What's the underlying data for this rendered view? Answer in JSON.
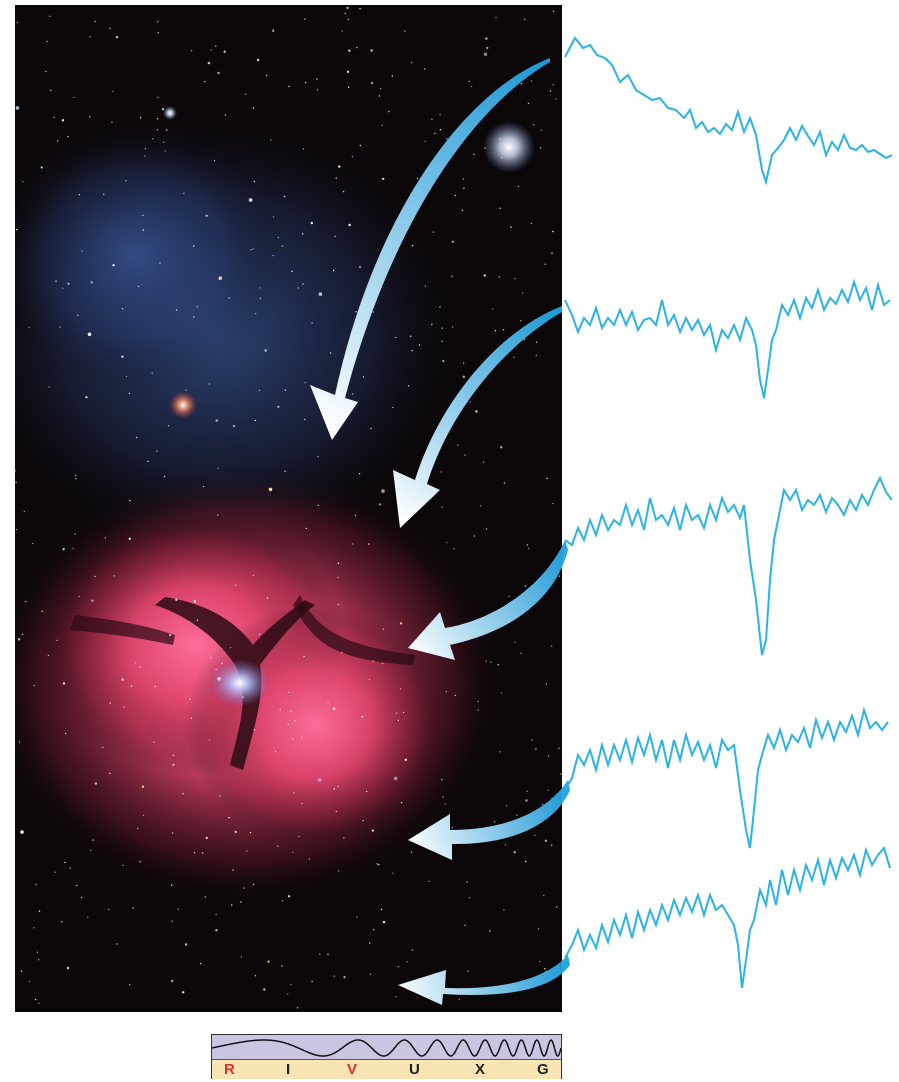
{
  "figure": {
    "photo_subject": "nebula-star-field",
    "spectrum_color": "#2bb3e6",
    "arrow_color": "#29a8e0",
    "spectra_count": 5
  },
  "wave_bar": {
    "bands": [
      {
        "label": "R",
        "highlight": true
      },
      {
        "label": "I",
        "highlight": false
      },
      {
        "label": "V",
        "highlight": true
      },
      {
        "label": "U",
        "highlight": false
      },
      {
        "label": "X",
        "highlight": false
      },
      {
        "label": "G",
        "highlight": false
      }
    ],
    "highlight_color": "#e0312a"
  }
}
